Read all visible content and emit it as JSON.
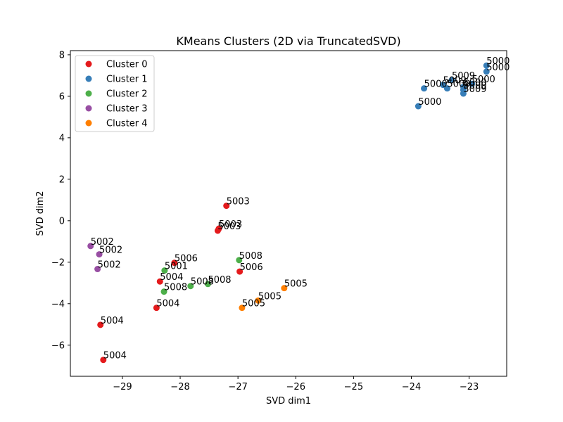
{
  "chart_data": {
    "type": "scatter",
    "title": "KMeans Clusters (2D via TruncatedSVD)",
    "xlabel": "SVD dim1",
    "ylabel": "SVD dim2",
    "xlim": [
      -29.9,
      -22.35
    ],
    "ylim": [
      -7.5,
      8.2
    ],
    "x_ticks": [
      -29,
      -28,
      -27,
      -26,
      -25,
      -24,
      -23
    ],
    "x_tick_labels": [
      "−29",
      "−28",
      "−27",
      "−26",
      "−25",
      "−24",
      "−23"
    ],
    "y_ticks": [
      -6,
      -4,
      -2,
      0,
      2,
      4,
      6,
      8
    ],
    "y_tick_labels": [
      "−6",
      "−4",
      "−2",
      "0",
      "2",
      "4",
      "6",
      "8"
    ],
    "grid": false,
    "legend_position": "upper-left",
    "series": [
      {
        "name": "Cluster 0",
        "color": "#e41a1c",
        "points": [
          {
            "x": -27.2,
            "y": 0.72,
            "label": "5003"
          },
          {
            "x": -27.33,
            "y": -0.38,
            "label": "5003"
          },
          {
            "x": -27.35,
            "y": -0.48,
            "label": "5003"
          },
          {
            "x": -28.1,
            "y": -2.03,
            "label": "5006"
          },
          {
            "x": -26.97,
            "y": -2.45,
            "label": "5006"
          },
          {
            "x": -28.35,
            "y": -2.93,
            "label": "5004"
          },
          {
            "x": -28.41,
            "y": -4.2,
            "label": "5004"
          },
          {
            "x": -29.38,
            "y": -5.02,
            "label": "5004"
          },
          {
            "x": -29.33,
            "y": -6.71,
            "label": "5004"
          }
        ]
      },
      {
        "name": "Cluster 1",
        "color": "#377eb8",
        "points": [
          {
            "x": -22.7,
            "y": 7.48,
            "label": "5000"
          },
          {
            "x": -22.7,
            "y": 7.19,
            "label": "5000"
          },
          {
            "x": -23.3,
            "y": 6.78,
            "label": "5009"
          },
          {
            "x": -22.95,
            "y": 6.6,
            "label": "5000"
          },
          {
            "x": -23.45,
            "y": 6.55,
            "label": "5009"
          },
          {
            "x": -23.1,
            "y": 6.45,
            "label": "5000"
          },
          {
            "x": -23.78,
            "y": 6.38,
            "label": "5000"
          },
          {
            "x": -23.38,
            "y": 6.38,
            "label": "5009"
          },
          {
            "x": -23.1,
            "y": 6.3,
            "label": "5000"
          },
          {
            "x": -23.1,
            "y": 6.13,
            "label": "5009"
          },
          {
            "x": -23.88,
            "y": 5.52,
            "label": "5000"
          }
        ]
      },
      {
        "name": "Cluster 2",
        "color": "#4daf4a",
        "points": [
          {
            "x": -28.27,
            "y": -2.4,
            "label": "5001"
          },
          {
            "x": -26.98,
            "y": -1.9,
            "label": "5008"
          },
          {
            "x": -27.52,
            "y": -3.05,
            "label": "5008"
          },
          {
            "x": -27.82,
            "y": -3.15,
            "label": "5008"
          },
          {
            "x": -28.28,
            "y": -3.42,
            "label": "5008"
          }
        ]
      },
      {
        "name": "Cluster 3",
        "color": "#984ea3",
        "points": [
          {
            "x": -29.55,
            "y": -1.22,
            "label": "5002"
          },
          {
            "x": -29.4,
            "y": -1.62,
            "label": "5002"
          },
          {
            "x": -29.43,
            "y": -2.33,
            "label": "5002"
          }
        ]
      },
      {
        "name": "Cluster 4",
        "color": "#ff7f00",
        "points": [
          {
            "x": -26.2,
            "y": -3.25,
            "label": "5005"
          },
          {
            "x": -26.65,
            "y": -3.85,
            "label": "5005"
          },
          {
            "x": -26.93,
            "y": -4.2,
            "label": "5005"
          }
        ]
      }
    ]
  }
}
